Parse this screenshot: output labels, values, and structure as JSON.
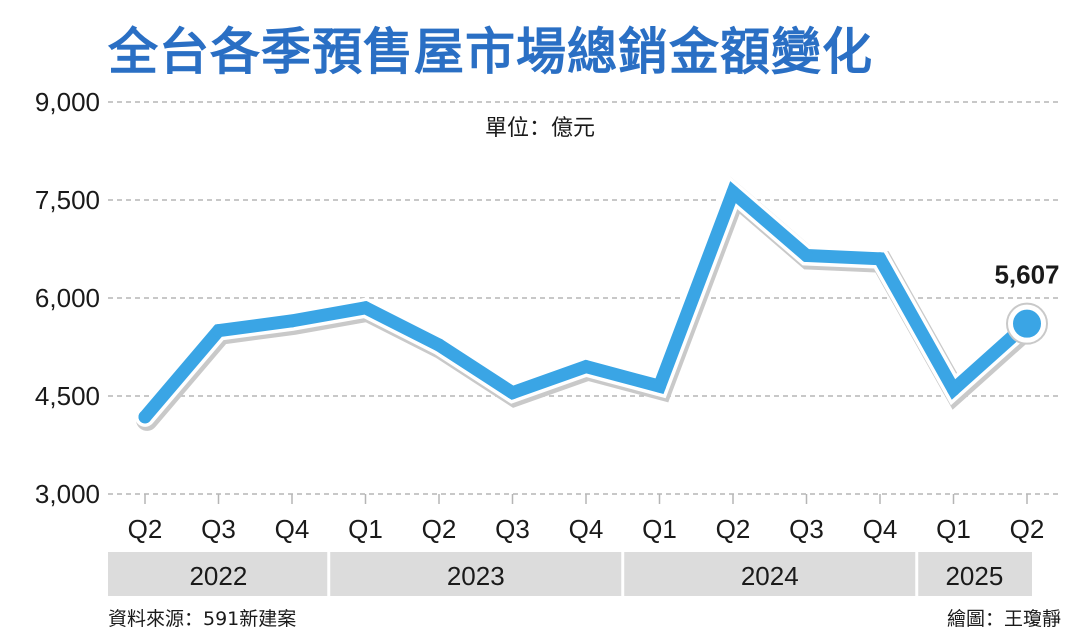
{
  "chart_data": {
    "type": "line",
    "title": "全台各季預售屋市場總銷金額變化",
    "unit": "單位：億元",
    "ylim": [
      3000,
      9000
    ],
    "yticks": [
      3000,
      4500,
      6000,
      7500,
      9000
    ],
    "ytick_labels": [
      "3,000",
      "4,500",
      "6,000",
      "7,500",
      "9,000"
    ],
    "x": [
      "Q2",
      "Q3",
      "Q4",
      "Q1",
      "Q2",
      "Q3",
      "Q4",
      "Q1",
      "Q2",
      "Q3",
      "Q4",
      "Q1",
      "Q2"
    ],
    "year_groups": [
      {
        "label": "2022",
        "count": 3
      },
      {
        "label": "2023",
        "count": 4
      },
      {
        "label": "2024",
        "count": 4
      },
      {
        "label": "2025",
        "count": 2
      }
    ],
    "series": [
      {
        "values": [
          4180,
          5500,
          5650,
          5850,
          5280,
          4550,
          4950,
          4650,
          7620,
          6650,
          6600,
          4600,
          5607
        ]
      }
    ],
    "annotations": [
      {
        "index": 12,
        "text": "5,607"
      }
    ],
    "grid": "horizontal dashed",
    "color": "#3aa5e5"
  },
  "footer": {
    "source": "資料來源：591新建案",
    "credit": "繪圖：王瓊靜"
  }
}
